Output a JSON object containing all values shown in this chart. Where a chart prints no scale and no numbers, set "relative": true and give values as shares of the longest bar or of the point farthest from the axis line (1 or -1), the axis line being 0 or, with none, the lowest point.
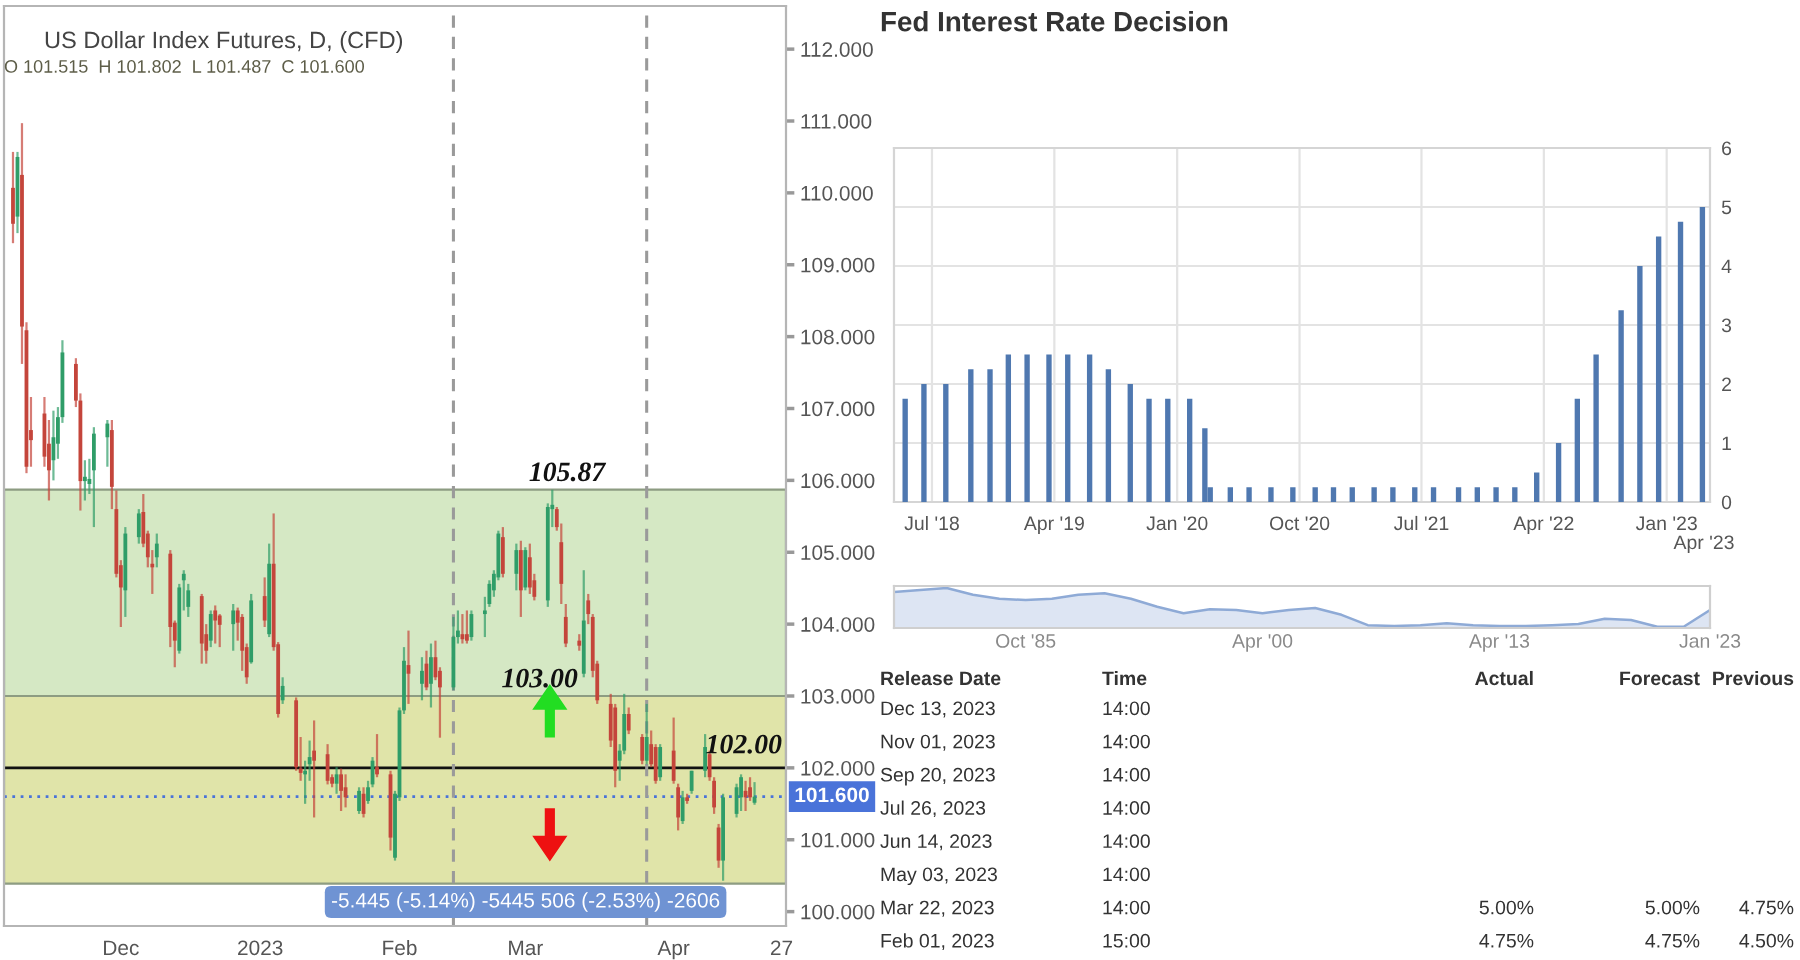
{
  "chart_data": [
    {
      "type": "candlestick",
      "title": "US Dollar Index Futures, D, (CFD)",
      "subtitle": "O 101.515  H 101.802  L 101.487  C 101.600",
      "x": [
        "2022-11-07",
        "2022-11-08",
        "2022-11-09",
        "2022-11-10",
        "2022-11-11",
        "2022-11-14",
        "2022-11-15",
        "2022-11-16",
        "2022-11-17",
        "2022-11-18",
        "2022-11-21",
        "2022-11-22",
        "2022-11-23",
        "2022-11-24",
        "2022-11-25",
        "2022-11-28",
        "2022-11-29",
        "2022-11-30",
        "2022-12-01",
        "2022-12-02",
        "2022-12-05",
        "2022-12-06",
        "2022-12-07",
        "2022-12-08",
        "2022-12-09",
        "2022-12-12",
        "2022-12-13",
        "2022-12-14",
        "2022-12-15",
        "2022-12-16",
        "2022-12-19",
        "2022-12-20",
        "2022-12-21",
        "2022-12-22",
        "2022-12-23",
        "2022-12-26",
        "2022-12-27",
        "2022-12-28",
        "2022-12-29",
        "2022-12-30",
        "2023-01-02",
        "2023-01-03",
        "2023-01-04",
        "2023-01-05",
        "2023-01-06",
        "2023-01-09",
        "2023-01-10",
        "2023-01-11",
        "2023-01-12",
        "2023-01-13",
        "2023-01-16",
        "2023-01-17",
        "2023-01-18",
        "2023-01-19",
        "2023-01-20",
        "2023-01-23",
        "2023-01-24",
        "2023-01-25",
        "2023-01-26",
        "2023-01-27",
        "2023-01-30",
        "2023-01-31",
        "2023-02-01",
        "2023-02-02",
        "2023-02-03",
        "2023-02-06",
        "2023-02-07",
        "2023-02-08",
        "2023-02-09",
        "2023-02-10",
        "2023-02-13",
        "2023-02-14",
        "2023-02-15",
        "2023-02-16",
        "2023-02-17",
        "2023-02-20",
        "2023-02-21",
        "2023-02-22",
        "2023-02-23",
        "2023-02-24",
        "2023-02-27",
        "2023-02-28",
        "2023-03-01",
        "2023-03-02",
        "2023-03-03",
        "2023-03-06",
        "2023-03-07",
        "2023-03-08",
        "2023-03-09",
        "2023-03-10",
        "2023-03-13",
        "2023-03-14",
        "2023-03-15",
        "2023-03-16",
        "2023-03-17",
        "2023-03-20",
        "2023-03-21",
        "2023-03-22",
        "2023-03-23",
        "2023-03-24",
        "2023-03-27",
        "2023-03-28",
        "2023-03-29",
        "2023-03-30",
        "2023-03-31",
        "2023-04-03",
        "2023-04-04",
        "2023-04-05",
        "2023-04-06",
        "2023-04-07",
        "2023-04-10",
        "2023-04-11",
        "2023-04-12",
        "2023-04-13",
        "2023-04-14",
        "2023-04-17",
        "2023-04-18",
        "2023-04-19",
        "2023-04-20",
        "2023-04-21"
      ],
      "ohlc": [
        [
          110.07,
          110.57,
          109.3,
          109.57
        ],
        [
          109.67,
          110.57,
          109.44,
          110.5
        ],
        [
          110.25,
          110.97,
          107.62,
          108.14
        ],
        [
          108.09,
          108.2,
          106.1,
          106.19
        ],
        [
          106.7,
          107.16,
          106.19,
          106.56
        ],
        [
          106.93,
          107.16,
          106.19,
          106.33
        ],
        [
          106.51,
          106.84,
          105.72,
          106.14
        ],
        [
          106.28,
          106.97,
          106.0,
          106.6
        ],
        [
          106.51,
          107.02,
          106.3,
          106.88
        ],
        [
          106.88,
          107.95,
          106.8,
          107.78
        ],
        [
          107.62,
          107.7,
          107.02,
          107.11
        ],
        [
          107.11,
          107.21,
          105.58,
          105.99
        ],
        [
          105.99,
          106.28,
          105.72,
          106.05
        ],
        [
          105.95,
          106.3,
          105.81,
          106.02
        ],
        [
          106.14,
          106.74,
          105.35,
          106.65
        ],
        [
          106.6,
          106.84,
          106.19,
          106.79
        ],
        [
          106.7,
          106.84,
          105.6,
          105.91
        ],
        [
          105.6,
          105.86,
          104.65,
          104.7
        ],
        [
          104.82,
          104.89,
          103.96,
          104.51
        ],
        [
          104.47,
          105.35,
          104.1,
          105.26
        ],
        [
          105.21,
          105.6,
          105.12,
          105.54
        ],
        [
          105.56,
          105.81,
          105.07,
          105.12
        ],
        [
          105.26,
          105.3,
          104.79,
          104.93
        ],
        [
          104.84,
          105.03,
          104.42,
          104.79
        ],
        [
          104.93,
          105.26,
          104.79,
          105.12
        ],
        [
          104.98,
          105.03,
          103.68,
          103.96
        ],
        [
          104.02,
          104.05,
          103.4,
          103.77
        ],
        [
          103.63,
          104.56,
          103.59,
          104.51
        ],
        [
          104.61,
          104.75,
          104.19,
          104.7
        ],
        [
          104.24,
          104.56,
          104.1,
          104.47
        ],
        [
          104.39,
          104.42,
          103.45,
          103.73
        ],
        [
          103.86,
          104.0,
          103.45,
          103.63
        ],
        [
          103.77,
          104.19,
          103.68,
          104.14
        ],
        [
          104.19,
          104.26,
          103.73,
          104.05
        ],
        [
          104.12,
          104.14,
          103.68,
          103.99
        ],
        [
          104.0,
          104.28,
          103.63,
          104.19
        ],
        [
          104.19,
          104.23,
          103.77,
          104.02
        ],
        [
          104.1,
          104.14,
          103.35,
          103.63
        ],
        [
          103.68,
          103.73,
          103.17,
          103.26
        ],
        [
          103.47,
          104.42,
          103.45,
          104.33
        ],
        [
          104.39,
          104.65,
          103.96,
          104.05
        ],
        [
          103.86,
          105.12,
          103.82,
          104.84
        ],
        [
          104.84,
          105.54,
          103.63,
          103.68
        ],
        [
          103.72,
          103.75,
          102.7,
          102.75
        ],
        [
          102.94,
          103.26,
          102.89,
          103.14
        ],
        [
          102.94,
          102.98,
          101.96,
          102.01
        ],
        [
          101.99,
          102.43,
          101.82,
          101.93
        ],
        [
          101.91,
          102.1,
          101.5,
          101.96
        ],
        [
          102.05,
          102.38,
          101.82,
          102.15
        ],
        [
          102.24,
          102.66,
          101.31,
          102.1
        ],
        [
          102.19,
          102.33,
          101.77,
          101.82
        ],
        [
          101.87,
          101.91,
          101.73,
          101.78
        ],
        [
          101.78,
          102.01,
          101.64,
          101.91
        ],
        [
          101.91,
          101.99,
          101.4,
          101.68
        ],
        [
          101.73,
          101.91,
          101.45,
          101.59
        ],
        [
          101.4,
          101.73,
          101.36,
          101.68
        ],
        [
          101.64,
          101.73,
          101.31,
          101.36
        ],
        [
          101.54,
          101.82,
          101.5,
          101.73
        ],
        [
          101.77,
          102.15,
          101.73,
          102.1
        ],
        [
          102.01,
          102.47,
          101.87,
          101.91
        ],
        [
          101.91,
          101.96,
          100.85,
          101.03
        ],
        [
          100.75,
          101.68,
          100.71,
          101.64
        ],
        [
          101.59,
          102.84,
          101.54,
          102.8
        ],
        [
          102.8,
          103.68,
          102.75,
          103.49
        ],
        [
          103.43,
          103.91,
          102.89,
          103.31
        ],
        [
          103.17,
          103.54,
          102.94,
          103.35
        ],
        [
          103.45,
          103.63,
          103.08,
          103.12
        ],
        [
          103.17,
          103.73,
          102.84,
          103.54
        ],
        [
          103.54,
          103.77,
          103.22,
          103.26
        ],
        [
          103.35,
          103.4,
          102.42,
          103.12
        ],
        [
          103.12,
          104.1,
          103.08,
          103.82
        ],
        [
          103.82,
          104.19,
          103.73,
          103.91
        ],
        [
          103.86,
          104.14,
          103.73,
          103.79
        ],
        [
          103.86,
          104.19,
          103.73,
          103.77
        ],
        [
          103.82,
          104.19,
          103.77,
          104.14
        ],
        [
          104.14,
          104.38,
          103.82,
          104.19
        ],
        [
          104.28,
          104.61,
          104.24,
          104.56
        ],
        [
          104.47,
          104.75,
          104.38,
          104.7
        ],
        [
          104.65,
          105.3,
          104.61,
          105.26
        ],
        [
          105.21,
          105.35,
          104.65,
          104.7
        ],
        [
          104.7,
          105.12,
          104.47,
          105.03
        ],
        [
          105.03,
          105.16,
          104.1,
          104.47
        ],
        [
          104.51,
          105.07,
          104.47,
          105.03
        ],
        [
          104.93,
          105.12,
          104.42,
          104.51
        ],
        [
          104.61,
          104.7,
          104.33,
          104.38
        ],
        [
          104.33,
          105.68,
          104.24,
          105.63
        ],
        [
          105.6,
          105.87,
          105.35,
          105.66
        ],
        [
          105.6,
          105.63,
          105.3,
          105.35
        ],
        [
          105.14,
          105.4,
          104.28,
          104.56
        ],
        [
          104.1,
          104.28,
          103.68,
          103.73
        ],
        [
          103.77,
          103.86,
          103.63,
          103.7
        ],
        [
          103.31,
          104.75,
          103.26,
          104.05
        ],
        [
          104.33,
          104.42,
          104.0,
          104.14
        ],
        [
          104.1,
          104.14,
          103.26,
          103.35
        ],
        [
          103.45,
          103.49,
          102.89,
          102.94
        ],
        [
          102.89,
          103.03,
          102.29,
          102.38
        ],
        [
          102.84,
          102.89,
          101.73,
          101.96
        ],
        [
          102.1,
          102.33,
          101.82,
          102.24
        ],
        [
          102.24,
          103.03,
          102.19,
          102.75
        ],
        [
          102.75,
          102.84,
          102.47,
          102.52
        ],
        [
          102.43,
          102.47,
          102.05,
          102.1
        ],
        [
          102.1,
          102.89,
          102.05,
          102.43
        ],
        [
          102.33,
          102.52,
          102.01,
          102.05
        ],
        [
          102.29,
          102.33,
          101.78,
          101.82
        ],
        [
          101.87,
          102.33,
          101.82,
          102.29
        ],
        [
          102.24,
          102.7,
          101.78,
          101.82
        ],
        [
          101.73,
          101.78,
          101.13,
          101.31
        ],
        [
          101.26,
          101.68,
          101.22,
          101.59
        ],
        [
          101.59,
          101.64,
          101.5,
          101.54
        ],
        [
          101.68,
          101.96,
          101.64,
          101.96
        ],
        [
          101.96,
          102.47,
          101.87,
          102.29
        ],
        [
          102.19,
          102.24,
          101.82,
          101.87
        ],
        [
          101.82,
          101.87,
          101.36,
          101.45
        ],
        [
          101.17,
          101.22,
          100.61,
          100.71
        ],
        [
          100.71,
          101.64,
          100.43,
          101.59
        ],
        [
          101.36,
          101.78,
          101.31,
          101.73
        ],
        [
          101.59,
          101.91,
          101.4,
          101.87
        ],
        [
          101.68,
          101.82,
          101.4,
          101.59
        ],
        [
          101.73,
          101.87,
          101.54,
          101.59
        ],
        [
          101.515,
          101.802,
          101.487,
          101.6
        ]
      ],
      "xlim": [
        "2022-11-05",
        "2023-04-28"
      ],
      "xticks": [
        {
          "value": "2022-12-01",
          "label": "Dec"
        },
        {
          "value": "2023-01-01",
          "label": "2023"
        },
        {
          "value": "2023-02-01",
          "label": "Feb"
        },
        {
          "value": "2023-03-01",
          "label": "Mar"
        },
        {
          "value": "2023-04-03",
          "label": "Apr"
        },
        {
          "value": "2023-04-27",
          "label": "27"
        }
      ],
      "ylim": [
        99.8,
        112.6
      ],
      "yticks": [
        {
          "value": 100,
          "label": "100.000"
        },
        {
          "value": 101,
          "label": "101.000"
        },
        {
          "value": 102,
          "label": "102.000"
        },
        {
          "value": 103,
          "label": "103.000"
        },
        {
          "value": 104,
          "label": "104.000"
        },
        {
          "value": 105,
          "label": "105.000"
        },
        {
          "value": 106,
          "label": "106.000"
        },
        {
          "value": 107,
          "label": "107.000"
        },
        {
          "value": 108,
          "label": "108.000"
        },
        {
          "value": 109,
          "label": "109.000"
        },
        {
          "value": 110,
          "label": "110.000"
        },
        {
          "value": 111,
          "label": "111.000"
        },
        {
          "value": 112,
          "label": "112.000"
        }
      ],
      "bands": [
        {
          "axis": "y",
          "from": 100.43,
          "to": 105.87,
          "label": "105.87",
          "color": "#d5e8c4"
        },
        {
          "axis": "y",
          "from": 100.39,
          "to": 103.0,
          "label": "103.00",
          "color": "#e0e4a9"
        }
      ],
      "ref_lines": [
        {
          "axis": "y",
          "value": 102.0,
          "label": "102.00",
          "color": "#111111"
        },
        {
          "axis": "y",
          "value": 101.6,
          "label": "101.600",
          "color": "#4a73d9",
          "line_style": "dotted"
        },
        {
          "axis": "x",
          "value": "2023-02-13",
          "color": "#9a9a9a",
          "line_style": "dashed"
        },
        {
          "axis": "x",
          "value": "2023-03-28",
          "color": "#9a9a9a",
          "line_style": "dashed"
        }
      ],
      "annotations": [
        "-5.445 (-5.14%) -5445 506 (-2.53%) -2606"
      ]
    },
    {
      "type": "bar",
      "title": "Fed Interest Rate Decision",
      "x": [
        "2018-05-02",
        "2018-06-13",
        "2018-08-01",
        "2018-09-26",
        "2018-11-08",
        "2018-12-19",
        "2019-01-30",
        "2019-03-20",
        "2019-05-01",
        "2019-06-19",
        "2019-07-31",
        "2019-09-18",
        "2019-10-30",
        "2019-12-11",
        "2020-01-29",
        "2020-03-03",
        "2020-03-15",
        "2020-04-29",
        "2020-06-10",
        "2020-07-29",
        "2020-09-16",
        "2020-11-05",
        "2020-12-16",
        "2021-01-27",
        "2021-03-17",
        "2021-04-28",
        "2021-06-16",
        "2021-07-28",
        "2021-09-22",
        "2021-11-03",
        "2021-12-15",
        "2022-01-26",
        "2022-03-16",
        "2022-05-04",
        "2022-06-15",
        "2022-07-27",
        "2022-09-21",
        "2022-11-02",
        "2022-12-14",
        "2023-02-01",
        "2023-03-22"
      ],
      "values": [
        1.75,
        2.0,
        2.0,
        2.25,
        2.25,
        2.5,
        2.5,
        2.5,
        2.5,
        2.5,
        2.25,
        2.0,
        1.75,
        1.75,
        1.75,
        1.25,
        0.25,
        0.25,
        0.25,
        0.25,
        0.25,
        0.25,
        0.25,
        0.25,
        0.25,
        0.25,
        0.25,
        0.25,
        0.25,
        0.25,
        0.25,
        0.25,
        0.5,
        1.0,
        1.75,
        2.5,
        3.25,
        4.0,
        4.5,
        4.75,
        5.0
      ],
      "color": "#4f78b0",
      "xlim": [
        "2018-04-07",
        "2023-04-08"
      ],
      "xticks": [
        {
          "value": "2018-07-01",
          "label": "Jul '18"
        },
        {
          "value": "2019-04-01",
          "label": "Apr '19"
        },
        {
          "value": "2020-01-01",
          "label": "Jan '20"
        },
        {
          "value": "2020-10-01",
          "label": "Oct '20"
        },
        {
          "value": "2021-07-01",
          "label": "Jul '21"
        },
        {
          "value": "2022-04-01",
          "label": "Apr '22"
        },
        {
          "value": "2023-01-01",
          "label": "Jan '23"
        }
      ],
      "annotations": [
        "Apr '23"
      ],
      "ylim": [
        0,
        6
      ],
      "yticks": [
        0,
        1,
        2,
        3,
        4,
        5,
        6
      ],
      "grid": true
    },
    {
      "type": "area",
      "relative": true,
      "color": "#8eaad6",
      "categories": [
        null,
        null,
        null,
        null,
        null,
        "Oct '85",
        null,
        null,
        null,
        null,
        null,
        null,
        null,
        null,
        "Apr '00",
        null,
        null,
        null,
        null,
        null,
        null,
        null,
        null,
        "Apr '13",
        null,
        null,
        null,
        null,
        null,
        null,
        null,
        "Jan '23"
      ],
      "values": [
        0.9,
        0.95,
        1.0,
        0.83,
        0.73,
        0.7,
        0.73,
        0.83,
        0.87,
        0.73,
        0.53,
        0.37,
        0.47,
        0.45,
        0.37,
        0.45,
        0.5,
        0.33,
        0.07,
        0.05,
        0.07,
        0.12,
        0.07,
        0.05,
        0.05,
        0.07,
        0.1,
        0.23,
        0.2,
        0.03,
        0.03,
        0.45
      ]
    },
    {
      "type": "other",
      "categories": [
        "Release Date",
        "Time",
        "Actual",
        "Forecast",
        "Previous"
      ],
      "cell_labels": [
        [
          "Dec 13, 2023",
          "14:00",
          null,
          null,
          null
        ],
        [
          "Nov 01, 2023",
          "14:00",
          null,
          null,
          null
        ],
        [
          "Sep 20, 2023",
          "14:00",
          null,
          null,
          null
        ],
        [
          "Jul 26, 2023",
          "14:00",
          null,
          null,
          null
        ],
        [
          "Jun 14, 2023",
          "14:00",
          null,
          null,
          null
        ],
        [
          "May 03, 2023",
          "14:00",
          null,
          null,
          null
        ],
        [
          "Mar 22, 2023",
          "14:00",
          "5.00%",
          "5.00%",
          "4.75%"
        ],
        [
          "Feb 01, 2023",
          "15:00",
          "4.75%",
          "4.75%",
          "4.50%"
        ]
      ]
    }
  ]
}
